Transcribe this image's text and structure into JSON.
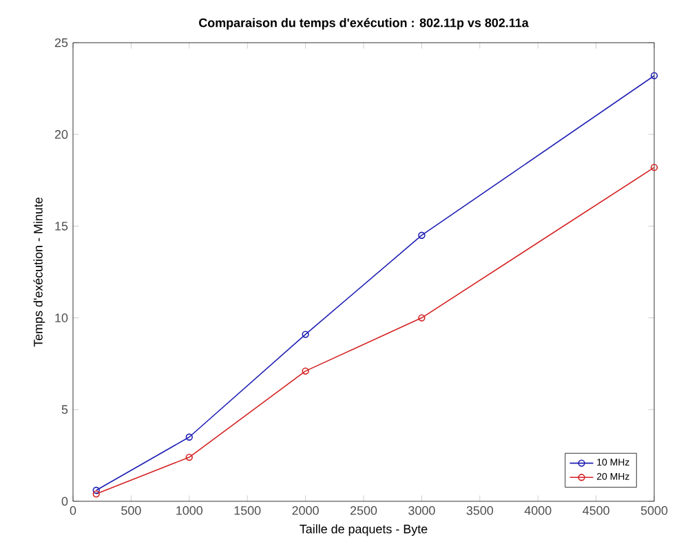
{
  "chart_data": {
    "type": "line",
    "title": "Comparaison du temps d'exécution : 802.11p vs 802.11a",
    "xlabel": "Taille de paquets - Byte",
    "ylabel": "Temps d'exécution - Minute",
    "x": [
      200,
      1000,
      2000,
      3000,
      5000
    ],
    "series": [
      {
        "name": "10 MHz",
        "color": "#1f1fb4",
        "values": [
          0.6,
          3.5,
          9.1,
          14.5,
          23.2
        ]
      },
      {
        "name": "20 MHz",
        "color": "#d42020",
        "values": [
          0.4,
          2.4,
          7.1,
          10.0,
          18.2
        ]
      }
    ],
    "xlim": [
      0,
      5000
    ],
    "xticks": [
      0,
      500,
      1000,
      1500,
      2000,
      2500,
      3000,
      3500,
      4000,
      4500,
      5000
    ],
    "ylim": [
      0,
      25
    ],
    "yticks": [
      0,
      5,
      10,
      15,
      20,
      25
    ],
    "legend": "bottom right",
    "marker": "circle",
    "line_style": "solid",
    "grid": false
  }
}
